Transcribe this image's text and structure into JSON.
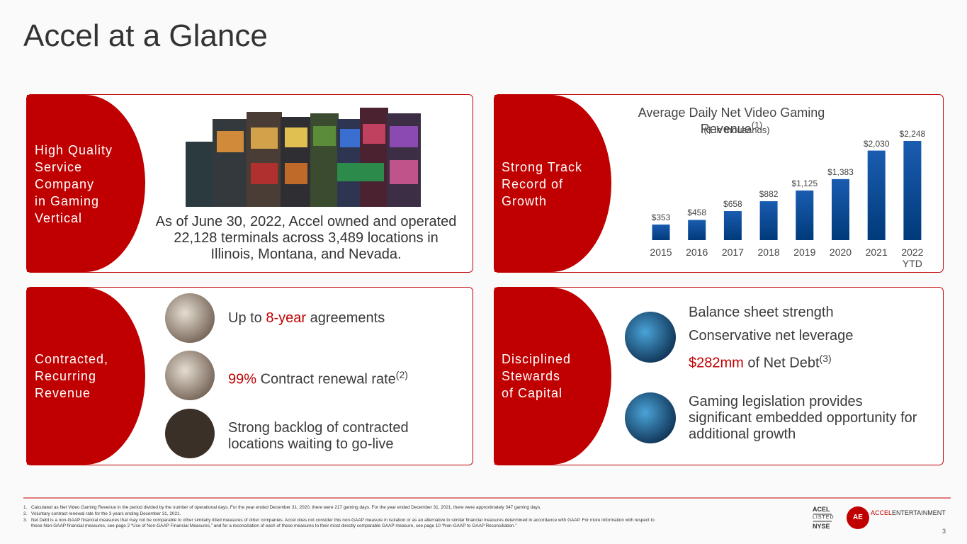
{
  "title": "Accel at a Glance",
  "panels": [
    {
      "label": [
        "High Quality",
        "Service",
        "Company",
        "in Gaming",
        "Vertical"
      ],
      "text": "As of June 30, 2022, Accel owned and operated 22,128 terminals across 3,489 locations in Illinois, Montana, and Nevada."
    },
    {
      "label": [
        "Strong Track",
        "Record of",
        "Growth"
      ]
    },
    {
      "label": [
        "Contracted,",
        "Recurring",
        "Revenue"
      ],
      "items": [
        {
          "pre": "Up to ",
          "highlight": "8-year",
          "post": " agreements"
        },
        {
          "highlight": "99%",
          "post": " Contract renewal rate",
          "sup": "(2)"
        },
        {
          "text": "Strong backlog of contracted locations waiting to go-live"
        }
      ]
    },
    {
      "label": [
        "Disciplined",
        "Stewards",
        "of Capital"
      ],
      "items": [
        {
          "text": "Balance sheet strength"
        },
        {
          "text": "Conservative net leverage"
        },
        {
          "highlight": "$282mm",
          "post": " of Net Debt",
          "sup": "(3)"
        },
        {
          "text": "Gaming legislation provides significant embedded opportunity for additional growth"
        }
      ]
    }
  ],
  "chart_data": {
    "type": "bar",
    "title": "Average Daily Net Video Gaming Revenue",
    "title_sup": "(1)",
    "subtitle": "($ in thousands)",
    "categories": [
      "2015",
      "2016",
      "2017",
      "2018",
      "2019",
      "2020",
      "2021",
      "2022 YTD"
    ],
    "values": [
      353,
      458,
      658,
      882,
      1125,
      1383,
      2030,
      2248
    ],
    "value_labels": [
      "$353",
      "$458",
      "$658",
      "$882",
      "$1,125",
      "$1,383",
      "$2,030",
      "$2,248"
    ],
    "color": "#0b4a96"
  },
  "footnotes": [
    {
      "num": "1.",
      "text": [
        "Calculated as Net Video Gaming Revenue in the period divided by the number of operational days. For the year ended December 31, 2020, there were 217 gaming days. For the year ended December 31, 2021, there were approximately 347 gaming days."
      ]
    },
    {
      "num": "2.",
      "text": [
        "Voluntary contract renewal rate for the 3 years ending December 31, 2021."
      ]
    },
    {
      "num": "3.",
      "text": [
        "Net Debt is a non-GAAP financial measures that may not be comparable to other similarly titled measures of other companies. Accel does not consider this non-GAAP measure in isolation or as an alternative to similar financial measures determined in accordance with GAAP. For more information with respect  to",
        "these Non-GAAP financial measures, see page 2 “Use of Non-GAAP Financial Measures,” and for a reconciliation of each of these measures to their most directly comparable GAAP measure, see page 10 “Non-GAAP to GAAP Reconciliation.”"
      ]
    }
  ],
  "logos": {
    "ticker": "ACEL",
    "listed": "LISTED",
    "exchange": "NYSE",
    "mark": "AE",
    "brand": "ACCEL",
    "brand_suffix": "ENTERTAINMENT"
  },
  "page_number": "3"
}
